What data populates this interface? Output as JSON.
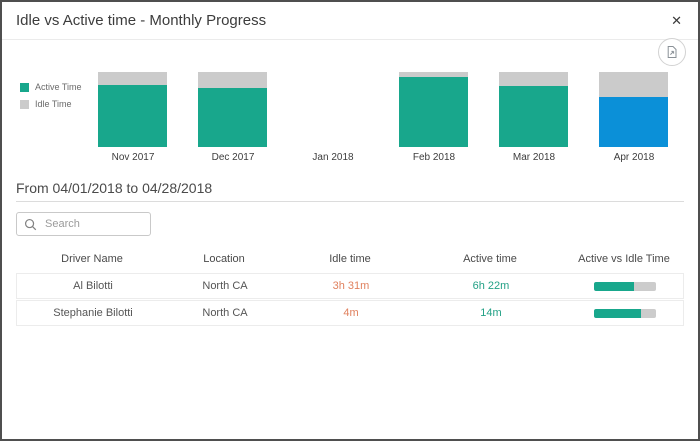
{
  "modal": {
    "title": "Idle vs Active time - Monthly Progress",
    "close_glyph": "✕"
  },
  "icons": {
    "close": "x-cross",
    "export": "export-document",
    "search": "magnifier"
  },
  "chart_data": {
    "type": "bar",
    "stacked": true,
    "percent_stacked": true,
    "title": "Idle vs Active time - Monthly Progress",
    "categories": [
      "Nov 2017",
      "Dec 2017",
      "Jan 2018",
      "Feb 2018",
      "Mar 2018",
      "Apr 2018"
    ],
    "series": [
      {
        "name": "Active Time",
        "color": "#18a78c",
        "values_pct": [
          83,
          78,
          0,
          93,
          81,
          67
        ]
      },
      {
        "name": "Idle Time",
        "color": "#cbcbcb",
        "values_pct": [
          17,
          22,
          0,
          7,
          19,
          33
        ]
      }
    ],
    "selected_category": "Apr 2018",
    "selected_bar_color": "#0b90d8",
    "legend_position": "left",
    "axes_hidden": true
  },
  "filters": {
    "date_range": "From 04/01/2018 to 04/28/2018",
    "search_placeholder": "Search",
    "search_value": ""
  },
  "table": {
    "columns": [
      "Driver Name",
      "Location",
      "Idle time",
      "Active time",
      "Active vs Idle Time"
    ],
    "rows": [
      {
        "driver_name": "Al Bilotti",
        "location": "North CA",
        "idle_time": "3h 31m",
        "active_time": "6h 22m",
        "active_pct": 64
      },
      {
        "driver_name": "Stephanie Bilotti",
        "location": "North CA",
        "idle_time": "4m",
        "active_time": "14m",
        "active_pct": 76
      }
    ]
  },
  "colors": {
    "idle_value_text": "#e0815e",
    "active_value_text": "#23a186",
    "progress_track": "#cccccc",
    "progress_fill": "#18a78c"
  }
}
